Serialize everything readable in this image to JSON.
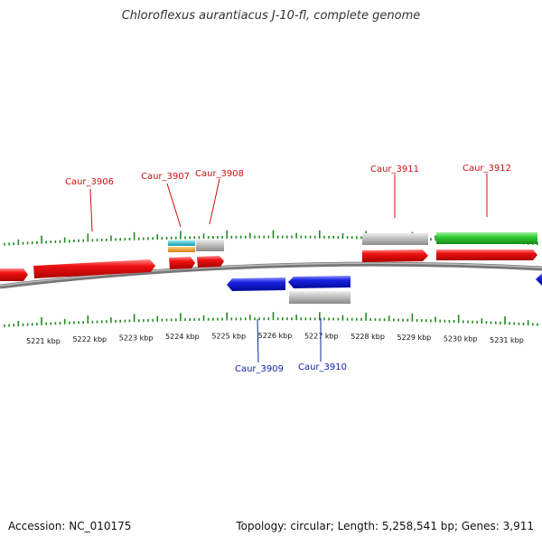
{
  "title": "Chloroflexus aurantiacus J-10-fl, complete genome",
  "footer": {
    "accession": "Accession: NC_010175",
    "summary": "Topology: circular; Length: 5,258,541 bp; Genes: 3,911"
  },
  "colors": {
    "forward_gene": "#ee1111",
    "reverse_gene": "#1a22e0",
    "pseudo_feature": "#bbbbbb",
    "rrna_feature": "#33cc33",
    "cyan_feature": "#22bbcc",
    "orange_feature": "#f0a020",
    "backbone": "#888888",
    "tick": "#228822",
    "forward_label": "#cc1111",
    "reverse_label": "#1122aa"
  },
  "scale": {
    "unit": "kbp",
    "kbp_labels": [
      "5221 kbp",
      "5222 kbp",
      "5223 kbp",
      "5224 kbp",
      "5225 kbp",
      "5226 kbp",
      "5227 kbp",
      "5228 kbp",
      "5229 kbp",
      "5230 kbp",
      "5231 kbp"
    ]
  },
  "gene_labels": {
    "forward": [
      "Caur_3906",
      "Caur_3907",
      "Caur_3908",
      "Caur_3911",
      "Caur_3912"
    ],
    "reverse": [
      "Caur_3909",
      "Caur_3910"
    ]
  }
}
